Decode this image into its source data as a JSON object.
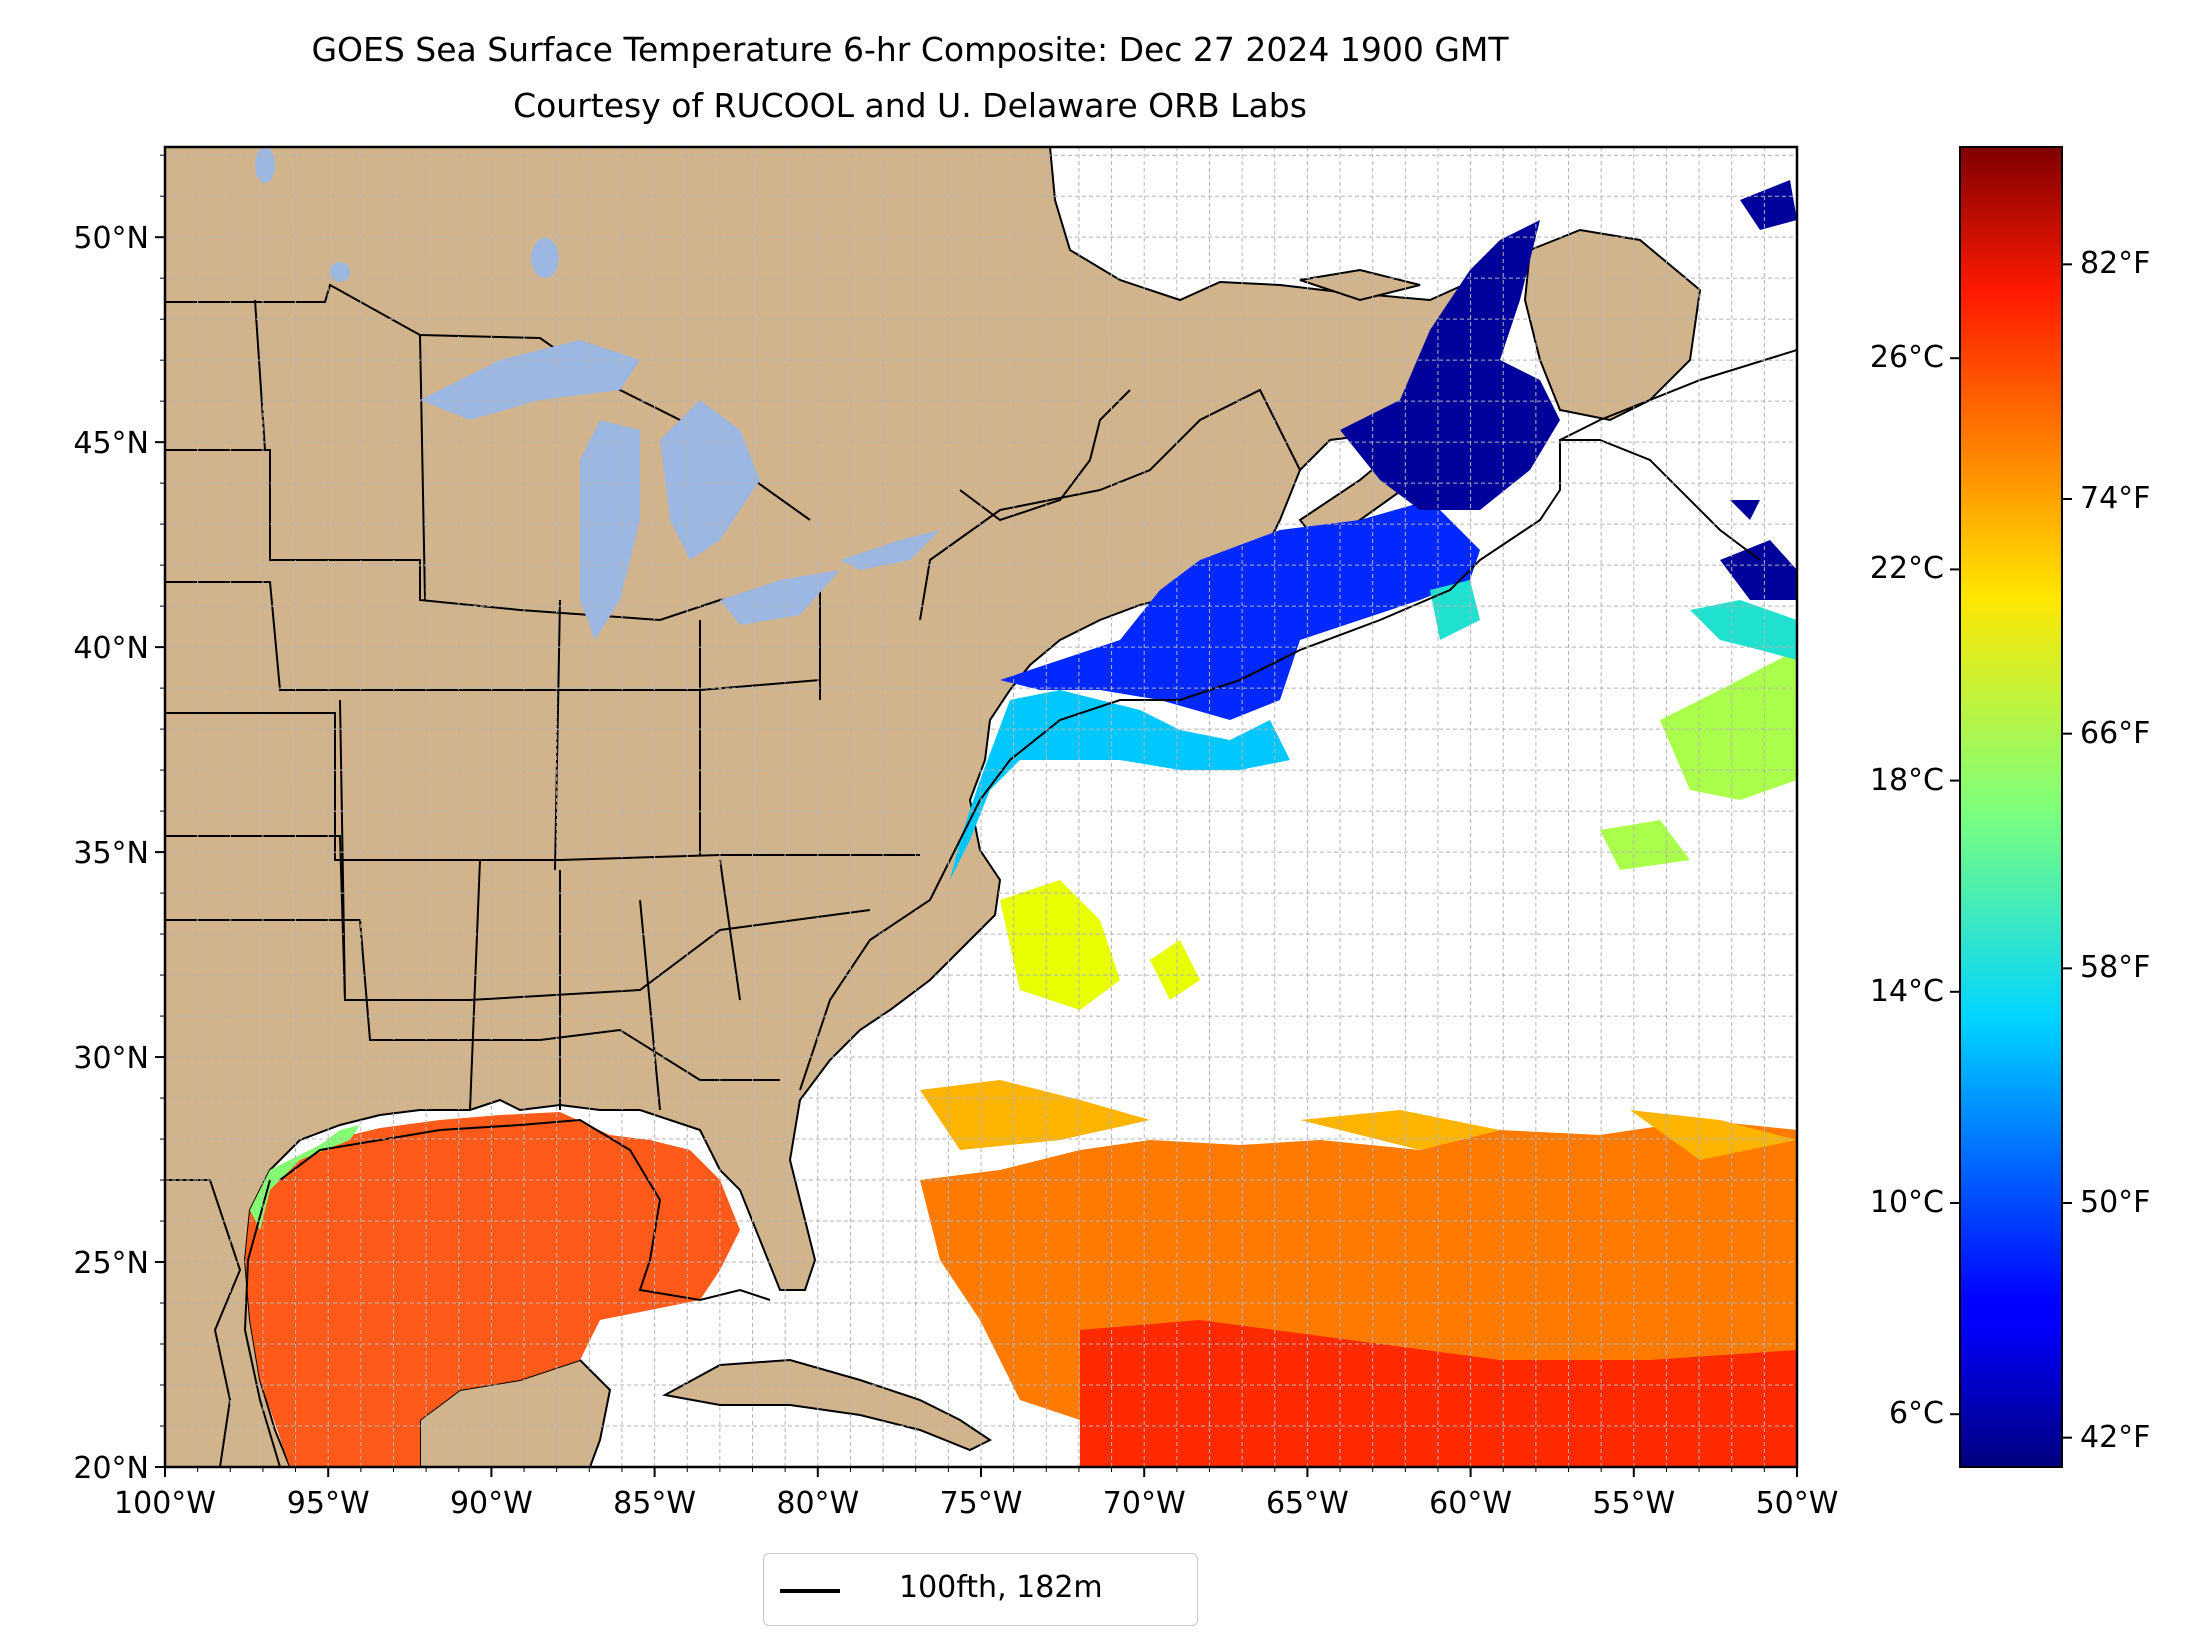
{
  "title": {
    "line1": "GOES Sea Surface Temperature 6-hr Composite: Dec 27 2024 1900 GMT",
    "line2": "Courtesy of RUCOOL and U. Delaware ORB Labs"
  },
  "map": {
    "lon_range": [
      -100,
      -50
    ],
    "lat_range": [
      20,
      52.2
    ],
    "lon_ticks": [
      "100°W",
      "95°W",
      "90°W",
      "85°W",
      "80°W",
      "75°W",
      "70°W",
      "65°W",
      "60°W",
      "55°W",
      "50°W"
    ],
    "lat_ticks": [
      "20°N",
      "25°N",
      "30°N",
      "35°N",
      "40°N",
      "45°N",
      "50°N"
    ],
    "colors": {
      "land": "#d2b48c",
      "lakes": "#9db7e3",
      "ocean_missing": "#ffffff",
      "grid": "#b4b4b4"
    }
  },
  "legend": {
    "label": "100fth, 182m"
  },
  "colorbar": {
    "colormap": "jet",
    "celsius_labels": [
      "6°C",
      "10°C",
      "14°C",
      "18°C",
      "22°C",
      "26°C"
    ],
    "fahrenheit_labels": [
      "42°F",
      "50°F",
      "58°F",
      "66°F",
      "74°F",
      "82°F"
    ]
  }
}
